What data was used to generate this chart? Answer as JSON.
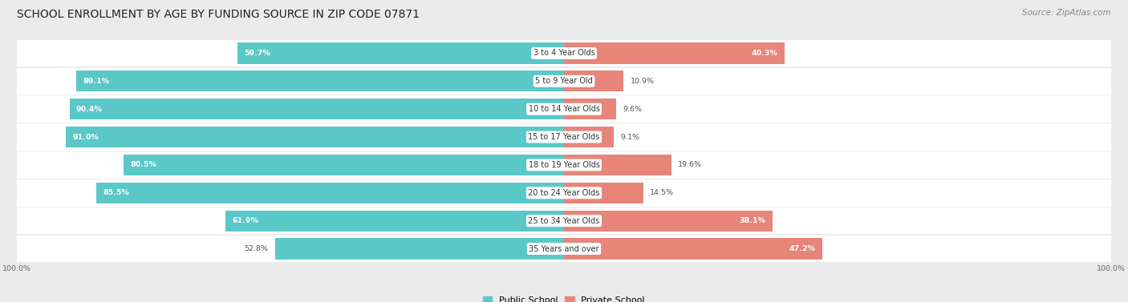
{
  "title": "SCHOOL ENROLLMENT BY AGE BY FUNDING SOURCE IN ZIP CODE 07871",
  "source": "Source: ZipAtlas.com",
  "categories": [
    "3 to 4 Year Olds",
    "5 to 9 Year Old",
    "10 to 14 Year Olds",
    "15 to 17 Year Olds",
    "18 to 19 Year Olds",
    "20 to 24 Year Olds",
    "25 to 34 Year Olds",
    "35 Years and over"
  ],
  "public_pct": [
    59.7,
    89.1,
    90.4,
    91.0,
    80.5,
    85.5,
    61.9,
    52.8
  ],
  "private_pct": [
    40.3,
    10.9,
    9.6,
    9.1,
    19.6,
    14.5,
    38.1,
    47.2
  ],
  "public_color": "#5BC8C8",
  "private_color": "#E8857A",
  "bg_color": "#EBEBEB",
  "row_bg_color": "#F5F5F5",
  "title_fontsize": 10,
  "source_fontsize": 7.5,
  "label_fontsize": 7,
  "bar_label_fontsize": 6.8,
  "legend_fontsize": 8
}
